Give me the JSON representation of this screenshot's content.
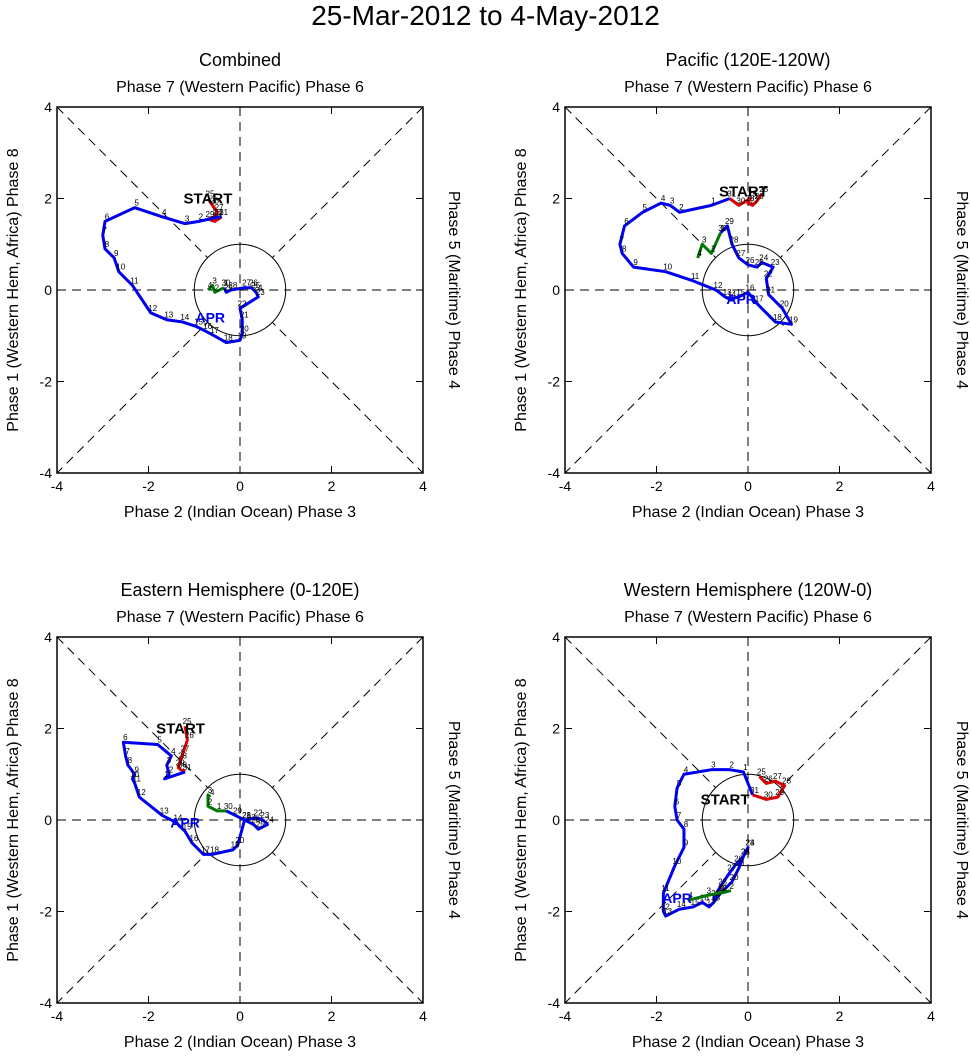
{
  "title": "25-Mar-2012 to 4-May-2012",
  "colors": {
    "march": "#dd0000",
    "april": "#0000ee",
    "may": "#007700",
    "axis": "#000000"
  },
  "chart_data": [
    {
      "type": "line",
      "title": "Combined",
      "top_label": "Phase 7 (Western Pacific) Phase 6",
      "bottom_label": "Phase 2 (Indian Ocean) Phase 3",
      "left_label": "Phase 1 (Western Hem, Africa) Phase 8",
      "right_label": "Phase 5 (Maritime) Phase 4",
      "xlim": [
        -4,
        4
      ],
      "ylim": [
        -4,
        4
      ],
      "x_ticks": [
        "-4",
        "-2",
        "0",
        "2",
        "4"
      ],
      "y_ticks": [
        "4",
        "2",
        "0",
        "-2",
        "-4"
      ],
      "start_label": "START",
      "month_label": "APR",
      "start_label_pos": [
        -0.7,
        2.0
      ],
      "month_label_pos": [
        -0.65,
        -0.6
      ],
      "series": [
        {
          "name": "March",
          "color": "#dd0000",
          "days": [
            "25",
            "26",
            "27",
            "28",
            "29",
            "30",
            "31"
          ],
          "x": [
            -0.7,
            -0.6,
            -0.5,
            -0.55,
            -0.7,
            -0.55,
            -0.4
          ],
          "y": [
            2.0,
            1.85,
            1.7,
            1.6,
            1.55,
            1.5,
            1.6
          ]
        },
        {
          "name": "April",
          "color": "#0000ee",
          "days": [
            "1",
            "2",
            "3",
            "4",
            "5",
            "6",
            "7",
            "8",
            "9",
            "10",
            "11",
            "12",
            "13",
            "14",
            "15",
            "16",
            "17",
            "18",
            "19",
            "20",
            "21",
            "22",
            "23",
            "24",
            "25",
            "26",
            "27",
            "28",
            "29",
            "30"
          ],
          "x": [
            -0.45,
            -0.9,
            -1.2,
            -1.7,
            -2.3,
            -2.95,
            -3.0,
            -2.95,
            -2.75,
            -2.65,
            -2.35,
            -1.95,
            -1.6,
            -1.25,
            -0.95,
            -0.75,
            -0.6,
            -0.3,
            0.0,
            0.05,
            0.05,
            0.0,
            0.4,
            0.35,
            0.3,
            0.25,
            0.1,
            -0.2,
            -0.3,
            -0.35
          ],
          "y": [
            1.6,
            1.5,
            1.45,
            1.6,
            1.8,
            1.5,
            1.2,
            0.9,
            0.7,
            0.4,
            0.1,
            -0.5,
            -0.65,
            -0.7,
            -0.8,
            -0.9,
            -0.98,
            -1.15,
            -1.1,
            -0.95,
            -0.65,
            -0.4,
            -0.15,
            -0.05,
            0.0,
            0.05,
            0.05,
            0.0,
            -0.05,
            0.05
          ]
        },
        {
          "name": "May",
          "color": "#007700",
          "days": [
            "1",
            "2",
            "3",
            "4"
          ],
          "x": [
            -0.35,
            -0.55,
            -0.6,
            -0.7
          ],
          "y": [
            0.05,
            -0.05,
            0.1,
            0.0
          ]
        }
      ]
    },
    {
      "type": "line",
      "title": "Pacific (120E-120W)",
      "top_label": "Phase 7 (Western Pacific) Phase 6",
      "bottom_label": "Phase 2 (Indian Ocean) Phase 3",
      "left_label": "Phase 1 (Western Hem, Africa) Phase 8",
      "right_label": "Phase 5 (Maritime) Phase 4",
      "xlim": [
        -4,
        4
      ],
      "ylim": [
        -4,
        4
      ],
      "x_ticks": [
        "-4",
        "-2",
        "0",
        "2",
        "4"
      ],
      "y_ticks": [
        "4",
        "2",
        "0",
        "-2",
        "-4"
      ],
      "start_label": "START",
      "month_label": "APR",
      "start_label_pos": [
        -0.1,
        2.15
      ],
      "month_label_pos": [
        -0.15,
        -0.2
      ],
      "series": [
        {
          "name": "March",
          "color": "#dd0000",
          "days": [
            "25",
            "26",
            "27",
            "28",
            "29",
            "30",
            "31"
          ],
          "x": [
            0.3,
            0.2,
            0.1,
            0.0,
            0.05,
            -0.2,
            -0.4
          ],
          "y": [
            2.1,
            1.95,
            1.85,
            1.9,
            2.0,
            1.85,
            2.0
          ]
        },
        {
          "name": "April",
          "color": "#0000ee",
          "days": [
            "1",
            "2",
            "3",
            "4",
            "5",
            "6",
            "7",
            "8",
            "9",
            "10",
            "11",
            "12",
            "13",
            "14",
            "15",
            "16",
            "17",
            "18",
            "19",
            "20",
            "21",
            "22",
            "23",
            "24",
            "25",
            "26",
            "27",
            "28",
            "29",
            "30"
          ],
          "x": [
            -0.8,
            -1.5,
            -1.7,
            -1.9,
            -2.3,
            -2.7,
            -2.8,
            -2.75,
            -2.5,
            -1.8,
            -1.2,
            -0.7,
            -0.5,
            -0.4,
            -0.2,
            0.0,
            0.2,
            0.6,
            0.95,
            0.75,
            0.45,
            0.4,
            0.55,
            0.3,
            0.2,
            0.0,
            -0.2,
            -0.35,
            -0.45,
            -0.6
          ],
          "y": [
            1.85,
            1.7,
            1.85,
            1.9,
            1.7,
            1.4,
            1.0,
            0.8,
            0.5,
            0.4,
            0.2,
            0.0,
            -0.15,
            -0.2,
            -0.15,
            -0.05,
            -0.3,
            -0.7,
            -0.75,
            -0.4,
            -0.1,
            0.25,
            0.5,
            0.6,
            0.5,
            0.55,
            0.7,
            1.0,
            1.4,
            1.25
          ]
        },
        {
          "name": "May",
          "color": "#007700",
          "days": [
            "1",
            "2",
            "3",
            "4"
          ],
          "x": [
            -0.6,
            -0.8,
            -1.0,
            -1.1
          ],
          "y": [
            1.25,
            0.8,
            1.0,
            0.7
          ]
        }
      ]
    },
    {
      "type": "line",
      "title": "Eastern Hemisphere (0-120E)",
      "top_label": "Phase 7 (Western Pacific) Phase 6",
      "bottom_label": "Phase 2 (Indian Ocean) Phase 3",
      "left_label": "Phase 1 (Western Hem, Africa) Phase 8",
      "right_label": "Phase 5 (Maritime) Phase 4",
      "xlim": [
        -4,
        4
      ],
      "ylim": [
        -4,
        4
      ],
      "x_ticks": [
        "-4",
        "-2",
        "0",
        "2",
        "4"
      ],
      "y_ticks": [
        "4",
        "2",
        "0",
        "-2",
        "-4"
      ],
      "start_label": "START",
      "month_label": "APR",
      "start_label_pos": [
        -1.3,
        2.0
      ],
      "month_label_pos": [
        -1.2,
        -0.05
      ],
      "series": [
        {
          "name": "March",
          "color": "#dd0000",
          "days": [
            "25",
            "26",
            "27",
            "28",
            "29",
            "30",
            "31"
          ],
          "x": [
            -1.2,
            -1.15,
            -1.25,
            -1.3,
            -1.35,
            -1.3,
            -1.2
          ],
          "y": [
            2.05,
            1.75,
            1.45,
            1.3,
            1.15,
            1.1,
            1.05
          ]
        },
        {
          "name": "April",
          "color": "#0000ee",
          "days": [
            "1",
            "2",
            "3",
            "4",
            "5",
            "6",
            "7",
            "8",
            "9",
            "10",
            "11",
            "12",
            "13",
            "14",
            "15",
            "16",
            "17",
            "18",
            "19",
            "20",
            "21",
            "22",
            "23",
            "24",
            "25",
            "26",
            "27",
            "28",
            "29",
            "30"
          ],
          "x": [
            -1.65,
            -1.55,
            -1.6,
            -1.5,
            -1.8,
            -2.55,
            -2.5,
            -2.45,
            -2.3,
            -2.35,
            -2.3,
            -2.2,
            -1.7,
            -1.4,
            -1.2,
            -1.05,
            -0.8,
            -0.6,
            -0.15,
            -0.05,
            0.1,
            0.35,
            0.5,
            0.6,
            0.4,
            0.3,
            0.2,
            0.1,
            -0.1,
            -0.3
          ],
          "y": [
            0.9,
            1.0,
            1.2,
            1.4,
            1.65,
            1.7,
            1.4,
            1.2,
            1.0,
            0.9,
            0.8,
            0.5,
            0.1,
            -0.05,
            -0.25,
            -0.5,
            -0.75,
            -0.75,
            -0.65,
            -0.55,
            0.0,
            0.05,
            0.0,
            -0.1,
            -0.2,
            -0.1,
            -0.05,
            0.0,
            0.1,
            0.2
          ]
        },
        {
          "name": "May",
          "color": "#007700",
          "days": [
            "1",
            "2",
            "3",
            "4"
          ],
          "x": [
            -0.5,
            -0.7,
            -0.7,
            -0.65
          ],
          "y": [
            0.2,
            0.3,
            0.55,
            0.5
          ]
        }
      ]
    },
    {
      "type": "line",
      "title": "Western Hemisphere (120W-0)",
      "top_label": "Phase 7 (Western Pacific) Phase 6",
      "bottom_label": "Phase 2 (Indian Ocean) Phase 3",
      "left_label": "Phase 1 (Western Hem, Africa) Phase 8",
      "right_label": "Phase 5 (Maritime) Phase 4",
      "xlim": [
        -4,
        4
      ],
      "ylim": [
        -4,
        4
      ],
      "x_ticks": [
        "-4",
        "-2",
        "0",
        "2",
        "4"
      ],
      "y_ticks": [
        "4",
        "2",
        "0",
        "-2",
        "-4"
      ],
      "start_label": "START",
      "month_label": "APR",
      "start_label_pos": [
        -0.5,
        0.45
      ],
      "month_label_pos": [
        -1.55,
        -1.7
      ],
      "series": [
        {
          "name": "March",
          "color": "#dd0000",
          "days": [
            "25",
            "26",
            "27",
            "28",
            "29",
            "30",
            "31"
          ],
          "x": [
            0.25,
            0.4,
            0.6,
            0.8,
            0.65,
            0.4,
            0.1
          ],
          "y": [
            0.95,
            0.8,
            0.85,
            0.75,
            0.5,
            0.45,
            0.55
          ]
        },
        {
          "name": "April",
          "color": "#0000ee",
          "days": [
            "1",
            "2",
            "3",
            "4",
            "5",
            "6",
            "7",
            "8",
            "9",
            "10",
            "11",
            "12",
            "13",
            "14",
            "15",
            "16",
            "17",
            "18",
            "19",
            "20",
            "21",
            "22",
            "23",
            "24",
            "25",
            "26",
            "27",
            "28",
            "29",
            "30"
          ],
          "x": [
            -0.1,
            -0.4,
            -0.8,
            -1.4,
            -1.55,
            -1.6,
            -1.55,
            -1.4,
            -1.4,
            -1.6,
            -1.85,
            -1.85,
            -1.8,
            -1.5,
            -1.2,
            -1.0,
            -0.85,
            -0.75,
            -0.6,
            -0.35,
            -0.2,
            -0.1,
            0.0,
            0.0,
            -0.1,
            -0.25,
            -0.4,
            -0.6,
            -0.75,
            -0.6
          ],
          "y": [
            1.05,
            1.1,
            1.1,
            1.0,
            0.7,
            0.3,
            0.0,
            -0.2,
            -0.6,
            -1.0,
            -1.6,
            -2.0,
            -2.1,
            -1.95,
            -1.9,
            -1.8,
            -1.9,
            -1.8,
            -1.6,
            -1.35,
            -1.05,
            -0.8,
            -0.6,
            -0.6,
            -0.8,
            -0.95,
            -1.15,
            -1.45,
            -1.7,
            -1.6
          ]
        },
        {
          "name": "May",
          "color": "#007700",
          "days": [
            "1",
            "2",
            "3",
            "4"
          ],
          "x": [
            -0.6,
            -0.4,
            -0.9,
            -1.3
          ],
          "y": [
            -1.6,
            -1.55,
            -1.65,
            -1.75
          ]
        }
      ]
    }
  ]
}
